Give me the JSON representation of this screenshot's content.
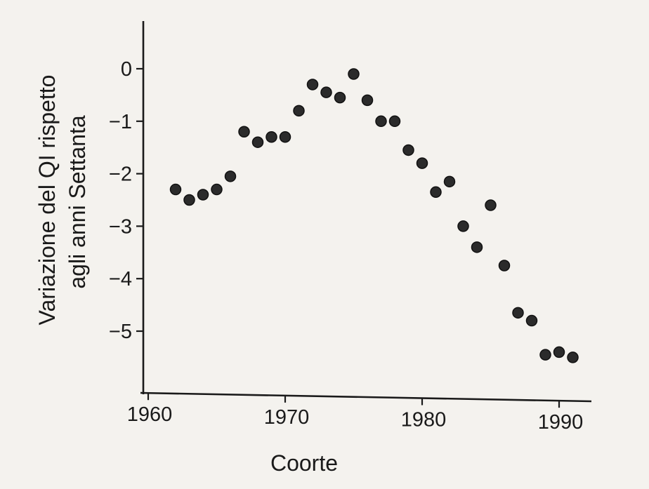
{
  "chart_data": {
    "type": "scatter",
    "title": "",
    "xlabel": "Coorte",
    "ylabel": [
      "Variazione del QI rispetto",
      "agli anni Settanta"
    ],
    "xlim": [
      1959,
      1992
    ],
    "ylim": [
      -6.2,
      0.9
    ],
    "xticks": [
      1960,
      1970,
      1980,
      1990
    ],
    "xtick_labels": [
      "1960",
      "1970",
      "1980",
      "1990"
    ],
    "yticks": [
      0,
      -1,
      -2,
      -3,
      -4,
      -5
    ],
    "ytick_labels": [
      "0",
      "−1",
      "−2",
      "−3",
      "−4",
      "−5"
    ],
    "grid": false,
    "marker_color": "#2b2b2b",
    "series": [
      {
        "x": [
          1962,
          1963,
          1964,
          1965,
          1966,
          1967,
          1968,
          1969,
          1970,
          1971,
          1972,
          1973,
          1974,
          1975,
          1976,
          1977,
          1978,
          1979,
          1980,
          1981,
          1982,
          1983,
          1984,
          1985,
          1986,
          1987,
          1988,
          1989,
          1990,
          1991
        ],
        "y": [
          -2.3,
          -2.5,
          -2.4,
          -2.3,
          -2.05,
          -1.2,
          -1.4,
          -1.3,
          -1.3,
          -0.8,
          -0.3,
          -0.45,
          -0.55,
          -0.1,
          -0.6,
          -1.0,
          -1.0,
          -1.55,
          -1.8,
          -2.35,
          -2.15,
          -3.0,
          -3.4,
          -2.6,
          -3.75,
          -4.65,
          -4.8,
          -5.45,
          -5.4,
          -5.5
        ]
      }
    ]
  }
}
